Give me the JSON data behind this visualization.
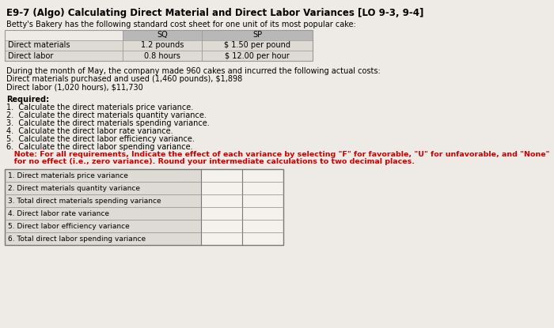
{
  "title": "E9-7 (Algo) Calculating Direct Material and Direct Labor Variances [LO 9-3, 9-4]",
  "intro": "Betty's Bakery has the following standard cost sheet for one unit of its most popular cake:",
  "table_rows": [
    [
      "Direct materials",
      "1.2 pounds",
      "$ 1.50 per pound"
    ],
    [
      "Direct labor",
      "0.8 hours",
      "$ 12.00 per hour"
    ]
  ],
  "actual_costs_lines": [
    "During the month of May, the company made 960 cakes and incurred the following actual costs:",
    "Direct materials purchased and used (1,460 pounds), $1,898",
    "Direct labor (1,020 hours), $11,730"
  ],
  "required_header": "Required:",
  "required_items": [
    "1.  Calculate the direct materials price variance.",
    "2.  Calculate the direct materials quantity variance.",
    "3.  Calculate the direct materials spending variance.",
    "4.  Calculate the direct labor rate variance.",
    "5.  Calculate the direct labor efficiency variance.",
    "6.  Calculate the direct labor spending variance."
  ],
  "note_line1": "   Note: For all requirements, Indicate the effect of each variance by selecting \"F\" for favorable, \"U\" for unfavorable, and \"None\"",
  "note_line2": "   for no effect (i.e., zero variance). Round your intermediate calculations to two decimal places.",
  "answer_rows": [
    "1. Direct materials price variance",
    "2. Direct materials quantity variance",
    "3. Total direct materials spending variance",
    "4. Direct labor rate variance",
    "5. Direct labor efficiency variance",
    "6. Total direct labor spending variance"
  ],
  "bg_color": "#eeebe6",
  "table_header_bg": "#b8b8b8",
  "table_row_bg": "#dedad4",
  "answer_label_bg": "#dedad4",
  "answer_box_bg": "#f5f2ee",
  "note_color": "#cc0000",
  "title_fontsize": 8.5,
  "body_fontsize": 7.0,
  "note_fontsize": 6.8,
  "ans_fontsize": 6.5
}
